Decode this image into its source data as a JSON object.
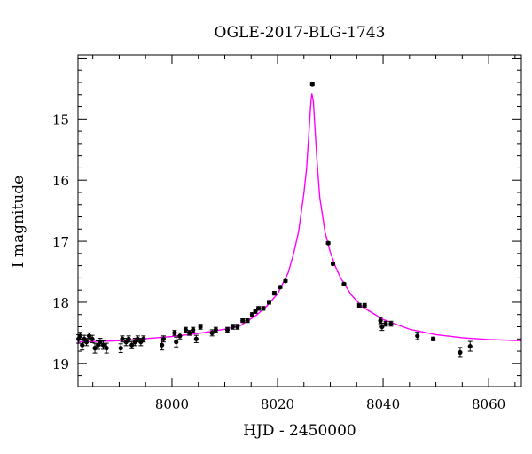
{
  "chart_data": {
    "type": "scatter",
    "title": "OGLE-2017-BLG-1743",
    "xlabel": "HJD - 2450000",
    "ylabel": "I magnitude",
    "xlim": [
      7982.2,
      8066.2
    ],
    "ylim": [
      19.38,
      13.95
    ],
    "y_inverted": true,
    "x_ticks": [
      8000,
      8020,
      8040,
      8060
    ],
    "y_ticks": [
      15,
      16,
      17,
      18,
      19
    ],
    "x_tick_labels": [
      "8000",
      "8020",
      "8040",
      "8060"
    ],
    "y_tick_labels": [
      "15",
      "16",
      "17",
      "18",
      "19"
    ],
    "grid": false,
    "point_color": "#000000",
    "model_color": "#ff00ff",
    "series": [
      {
        "kind": "points",
        "x": [
          7982.3,
          7982.6,
          7983.0,
          7983.4,
          7983.8,
          7984.3,
          7984.9,
          7985.4,
          7986.0,
          7986.4,
          7987.0,
          7987.6,
          7990.3,
          7990.6,
          7991.3,
          7991.8,
          7992.4,
          7993.0,
          7993.5,
          7994.1,
          7994.6,
          7998.1,
          7998.4,
          8000.5,
          8000.8,
          8001.5,
          8002.6,
          8003.3,
          8004.0,
          8004.6,
          8005.4,
          8007.6,
          8008.3,
          8010.5,
          8011.5,
          8012.4,
          8013.4,
          8014.3,
          8015.2,
          8015.8,
          8016.4,
          8017.3,
          8018.4,
          8019.4,
          8020.5,
          8021.5,
          8026.6,
          8029.6,
          8030.5,
          8032.6,
          8035.5,
          8036.5,
          8039.5,
          8039.8,
          8040.5,
          8041.5,
          8046.5,
          8049.5,
          8054.6,
          8056.5
        ],
        "y": [
          18.6,
          18.55,
          18.7,
          18.6,
          18.65,
          18.55,
          18.6,
          18.75,
          18.7,
          18.65,
          18.7,
          18.75,
          18.75,
          18.6,
          18.65,
          18.6,
          18.7,
          18.65,
          18.6,
          18.65,
          18.6,
          18.7,
          18.6,
          18.5,
          18.65,
          18.55,
          18.45,
          18.5,
          18.45,
          18.6,
          18.4,
          18.5,
          18.45,
          18.45,
          18.4,
          18.4,
          18.3,
          18.3,
          18.2,
          18.15,
          18.1,
          18.1,
          18.0,
          17.85,
          17.75,
          17.65,
          14.43,
          17.03,
          17.37,
          17.7,
          18.05,
          18.05,
          18.3,
          18.4,
          18.35,
          18.35,
          18.55,
          18.6,
          18.82,
          18.72
        ],
        "yerr": [
          0.07,
          0.06,
          0.08,
          0.06,
          0.06,
          0.05,
          0.06,
          0.08,
          0.07,
          0.06,
          0.07,
          0.08,
          0.07,
          0.05,
          0.06,
          0.05,
          0.06,
          0.06,
          0.05,
          0.06,
          0.05,
          0.08,
          0.05,
          0.04,
          0.08,
          0.05,
          0.04,
          0.04,
          0.04,
          0.06,
          0.04,
          0.05,
          0.04,
          0.04,
          0.04,
          0.04,
          0.03,
          0.03,
          0.03,
          0.03,
          0.03,
          0.03,
          0.03,
          0.03,
          0.02,
          0.02,
          0.02,
          0.02,
          0.02,
          0.02,
          0.03,
          0.03,
          0.05,
          0.06,
          0.04,
          0.04,
          0.06,
          0.03,
          0.08,
          0.08
        ]
      },
      {
        "kind": "model",
        "x": [
          7982.2,
          7990.0,
          8000.0,
          8005.0,
          8010.0,
          8013.0,
          8016.0,
          8018.0,
          8020.0,
          8022.0,
          8023.0,
          8024.0,
          8025.0,
          8025.5,
          8026.0,
          8026.3,
          8026.5,
          8026.8,
          8027.0,
          8027.5,
          8028.0,
          8029.0,
          8030.0,
          8031.0,
          8032.0,
          8034.0,
          8036.0,
          8040.0,
          8045.0,
          8050.0,
          8055.0,
          8060.0,
          8066.2
        ],
        "y": [
          18.65,
          18.63,
          18.56,
          18.51,
          18.44,
          18.38,
          18.21,
          18.06,
          17.86,
          17.52,
          17.22,
          16.84,
          16.21,
          15.81,
          15.16,
          14.75,
          14.58,
          14.72,
          15.02,
          15.71,
          16.28,
          16.85,
          17.18,
          17.42,
          17.61,
          17.88,
          18.07,
          18.28,
          18.44,
          18.53,
          18.58,
          18.61,
          18.63
        ]
      }
    ]
  }
}
